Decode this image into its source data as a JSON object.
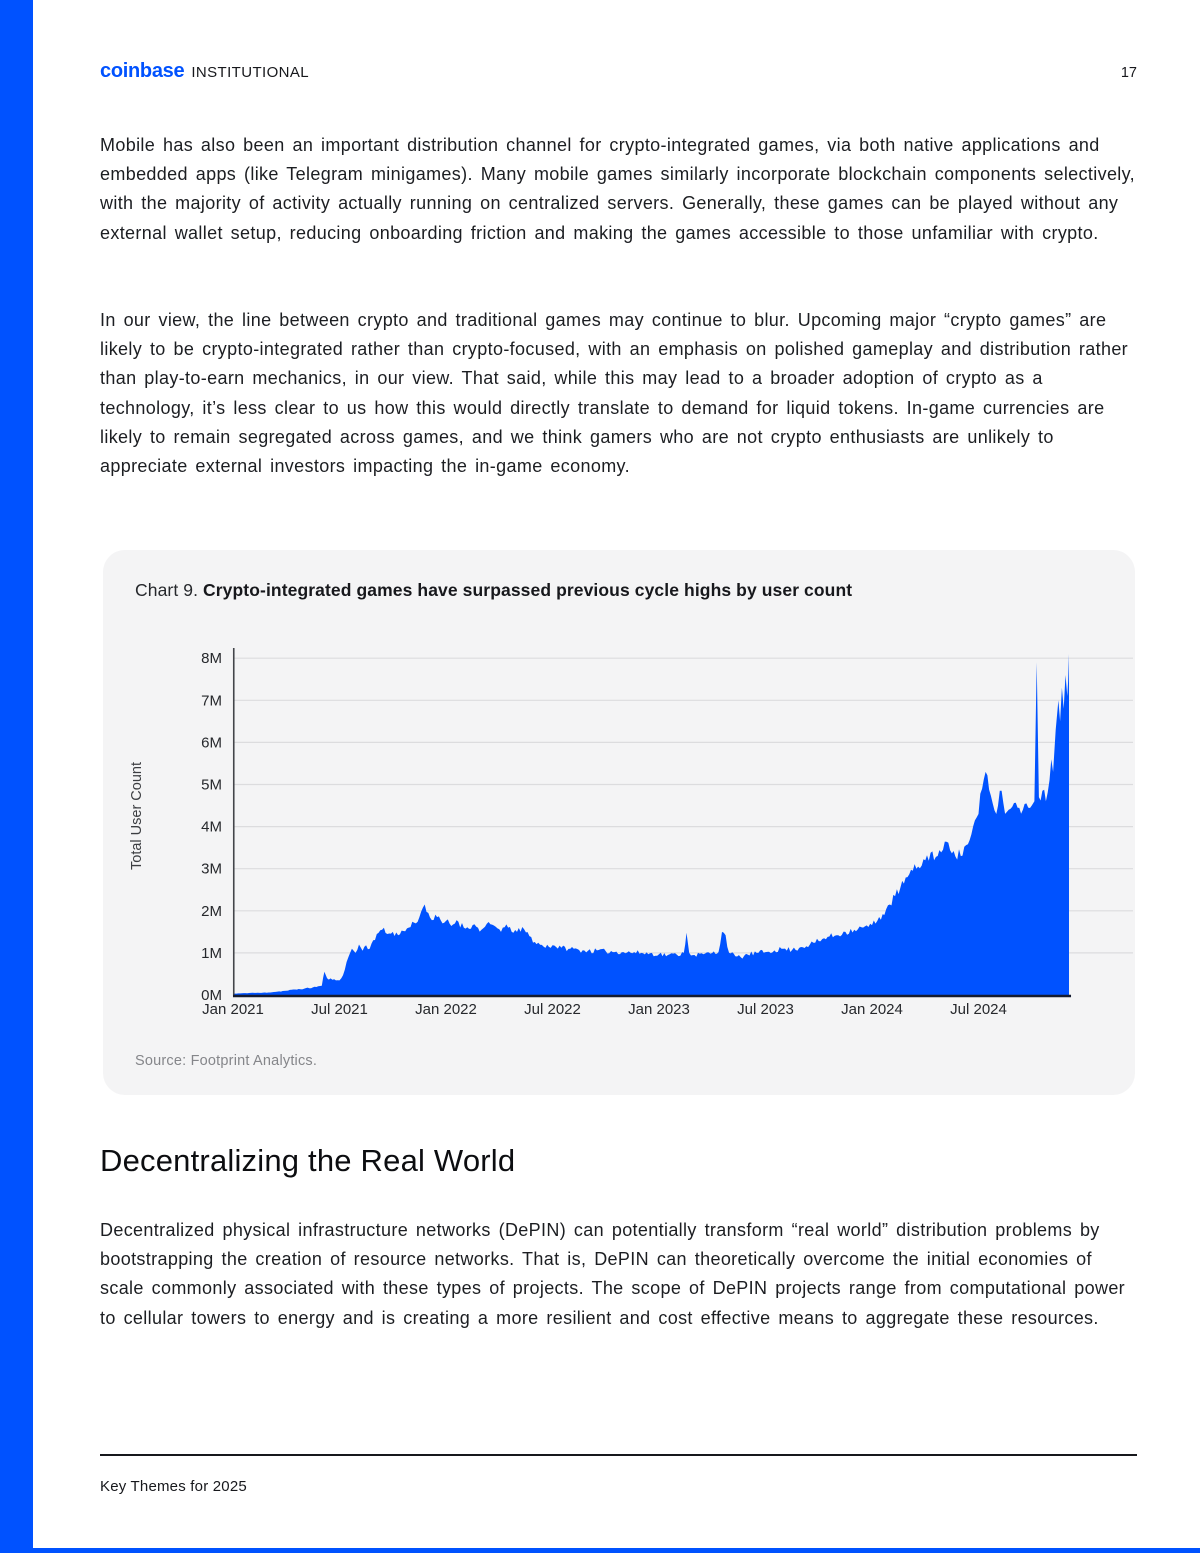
{
  "header": {
    "brand": "coinbase",
    "brand_suffix": "INSTITUTIONAL",
    "page_number": "17"
  },
  "paragraphs": {
    "p1": "Mobile has also been an important distribution channel for crypto-integrated games, via both native applications and embedded apps (like Telegram minigames). Many mobile games similarly incorporate blockchain components selectively, with the majority of activity actually running on centralized servers. Generally, these games can be played without any external wallet setup, reducing onboarding friction and making the games accessible to those unfamiliar with crypto.",
    "p2": "In our view, the line between crypto and traditional games may continue to blur. Upcoming major “crypto games” are likely to be crypto-integrated rather than crypto-focused, with an emphasis on polished gameplay and distribution rather than play-to-earn mechanics, in our view. That said, while this may lead to a broader adoption of crypto as a technology, it’s less clear to us how this would directly translate to demand for liquid tokens. In-game currencies are likely to remain segregated across games, and we think gamers who are not crypto enthusiasts are unlikely to appreciate external investors impacting the in-game economy.",
    "p3": "Decentralized physical infrastructure networks (DePIN) can potentially transform “real world” distribution problems by bootstrapping the creation of resource networks. That is, DePIN can theoretically overcome the initial economies of scale commonly associated with these types of projects. The scope of DePIN projects range from computational power to cellular towers to energy and is creating a more resilient and cost effective means to aggregate these resources."
  },
  "chart_card": {
    "label": "Chart 9.",
    "title": "Crypto-integrated games have surpassed previous cycle highs by user count",
    "source": "Source: Footprint Analytics."
  },
  "section": {
    "heading": "Decentralizing the Real World"
  },
  "footer": {
    "title": "Key Themes for 2025"
  },
  "colors": {
    "accent": "#0052ff",
    "card_bg": "#f4f4f5",
    "body_text": "#1c1e22",
    "heading_text": "#0c0d10",
    "source_text": "#85868a"
  },
  "chart_data": {
    "type": "area",
    "title": "Crypto-integrated games have surpassed previous cycle highs by user count",
    "xlabel": "",
    "ylabel": "Total User Count",
    "x_range": [
      "Jan 2021",
      "Dec 2024"
    ],
    "ylim": [
      0,
      8
    ],
    "y_unit": "M",
    "y_tick_labels": [
      "0M",
      "1M",
      "2M",
      "3M",
      "4M",
      "5M",
      "6M",
      "7M",
      "8M"
    ],
    "x_tick_labels": [
      "Jan 2021",
      "Jul 2021",
      "Jan 2022",
      "Jul 2022",
      "Jan 2023",
      "Jul 2023",
      "Jan 2024",
      "Jul 2024"
    ],
    "x_tick_months": [
      0,
      6,
      12,
      18,
      24,
      30,
      36,
      42
    ],
    "grid": "horizontal",
    "legend": "none",
    "series": [
      {
        "name": "Total User Count (millions)",
        "points": [
          [
            0,
            0.03
          ],
          [
            0.5,
            0.04
          ],
          [
            1,
            0.05
          ],
          [
            1.5,
            0.05
          ],
          [
            2,
            0.06
          ],
          [
            2.5,
            0.08
          ],
          [
            3,
            0.1
          ],
          [
            3.5,
            0.13
          ],
          [
            4,
            0.15
          ],
          [
            4.5,
            0.18
          ],
          [
            5,
            0.22
          ],
          [
            5.15,
            0.55
          ],
          [
            5.3,
            0.4
          ],
          [
            5.6,
            0.36
          ],
          [
            5.9,
            0.35
          ],
          [
            6.1,
            0.4
          ],
          [
            6.3,
            0.6
          ],
          [
            6.5,
            0.9
          ],
          [
            6.7,
            1.1
          ],
          [
            6.9,
            1.0
          ],
          [
            7.1,
            1.2
          ],
          [
            7.3,
            1.05
          ],
          [
            7.5,
            1.18
          ],
          [
            7.7,
            1.1
          ],
          [
            7.9,
            1.3
          ],
          [
            8.1,
            1.45
          ],
          [
            8.4,
            1.55
          ],
          [
            8.7,
            1.45
          ],
          [
            9,
            1.5
          ],
          [
            9.3,
            1.42
          ],
          [
            9.6,
            1.52
          ],
          [
            9.9,
            1.6
          ],
          [
            10.2,
            1.72
          ],
          [
            10.5,
            1.85
          ],
          [
            10.8,
            2.15
          ],
          [
            11,
            1.95
          ],
          [
            11.2,
            1.78
          ],
          [
            11.5,
            1.85
          ],
          [
            11.8,
            1.7
          ],
          [
            12,
            1.76
          ],
          [
            12.3,
            1.64
          ],
          [
            12.6,
            1.78
          ],
          [
            13,
            1.6
          ],
          [
            13.5,
            1.66
          ],
          [
            14,
            1.55
          ],
          [
            14.5,
            1.68
          ],
          [
            15,
            1.56
          ],
          [
            15.5,
            1.6
          ],
          [
            16,
            1.5
          ],
          [
            16.4,
            1.56
          ],
          [
            16.7,
            1.4
          ],
          [
            17,
            1.26
          ],
          [
            17.5,
            1.15
          ],
          [
            18,
            1.18
          ],
          [
            18.5,
            1.12
          ],
          [
            19,
            1.1
          ],
          [
            19.5,
            1.07
          ],
          [
            20,
            1.05
          ],
          [
            21,
            1.04
          ],
          [
            22,
            1.02
          ],
          [
            23,
            1.0
          ],
          [
            24,
            0.97
          ],
          [
            24.5,
            0.95
          ],
          [
            25,
            0.96
          ],
          [
            25.4,
            1.0
          ],
          [
            25.55,
            1.48
          ],
          [
            25.7,
            1.0
          ],
          [
            26,
            0.95
          ],
          [
            26.5,
            0.97
          ],
          [
            27,
            1.0
          ],
          [
            27.35,
            1.02
          ],
          [
            27.55,
            1.5
          ],
          [
            27.75,
            1.42
          ],
          [
            27.95,
            1.0
          ],
          [
            28.3,
            0.92
          ],
          [
            28.6,
            0.9
          ],
          [
            29,
            0.96
          ],
          [
            29.5,
            1.0
          ],
          [
            30,
            1.02
          ],
          [
            30.5,
            1.06
          ],
          [
            31,
            1.1
          ],
          [
            31.5,
            1.07
          ],
          [
            32,
            1.14
          ],
          [
            32.5,
            1.2
          ],
          [
            33,
            1.28
          ],
          [
            33.5,
            1.38
          ],
          [
            34,
            1.42
          ],
          [
            34.5,
            1.5
          ],
          [
            35,
            1.55
          ],
          [
            35.5,
            1.6
          ],
          [
            36,
            1.66
          ],
          [
            36.3,
            1.76
          ],
          [
            36.6,
            1.92
          ],
          [
            37,
            2.15
          ],
          [
            37.3,
            2.35
          ],
          [
            37.6,
            2.55
          ],
          [
            38,
            2.8
          ],
          [
            38.3,
            2.95
          ],
          [
            38.6,
            3.05
          ],
          [
            39,
            3.2
          ],
          [
            39.3,
            3.38
          ],
          [
            39.6,
            3.28
          ],
          [
            40,
            3.45
          ],
          [
            40.3,
            3.62
          ],
          [
            40.6,
            3.42
          ],
          [
            41,
            3.3
          ],
          [
            41.3,
            3.56
          ],
          [
            41.6,
            3.82
          ],
          [
            42,
            4.3
          ],
          [
            42.2,
            4.9
          ],
          [
            42.4,
            5.3
          ],
          [
            42.6,
            4.88
          ],
          [
            42.8,
            4.55
          ],
          [
            43,
            4.3
          ],
          [
            43.2,
            4.85
          ],
          [
            43.4,
            4.55
          ],
          [
            43.6,
            4.35
          ],
          [
            43.8,
            4.42
          ],
          [
            44,
            4.56
          ],
          [
            44.2,
            4.45
          ],
          [
            44.5,
            4.4
          ],
          [
            44.7,
            4.55
          ],
          [
            45,
            4.5
          ],
          [
            45.15,
            4.6
          ],
          [
            45.28,
            7.9
          ],
          [
            45.4,
            4.7
          ],
          [
            45.6,
            4.85
          ],
          [
            45.8,
            4.6
          ],
          [
            46,
            5.1
          ],
          [
            46.1,
            5.6
          ],
          [
            46.2,
            5.3
          ],
          [
            46.35,
            6.3
          ],
          [
            46.5,
            7.0
          ],
          [
            46.6,
            6.5
          ],
          [
            46.7,
            7.3
          ],
          [
            46.8,
            6.8
          ],
          [
            46.9,
            7.6
          ],
          [
            47,
            7.1
          ],
          [
            47.05,
            7.45
          ],
          [
            47.1,
            8.1
          ]
        ]
      }
    ],
    "jitter_amp": 0.12,
    "seed": 11,
    "colors": {
      "area": "#0052ff",
      "grid": "#dcdcde",
      "axis": "#43454a",
      "baseline": "#141b30",
      "tick_text": "#26282c",
      "axis_label": "#3c3e42"
    }
  }
}
